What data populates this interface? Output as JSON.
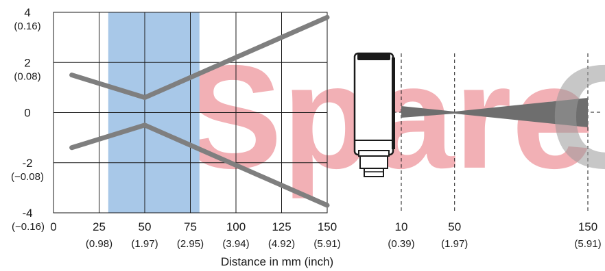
{
  "watermark": {
    "text": "SpareC",
    "color_main": "#e8707a",
    "color_tail": "#9a9a9a"
  },
  "chart_data": [
    {
      "type": "line",
      "title": "",
      "xlabel": "Distance in mm (inch)",
      "ylabel": "",
      "xlim": [
        0,
        150
      ],
      "ylim": [
        -4,
        4
      ],
      "grid": true,
      "x_ticks": [
        {
          "value": 0,
          "label": "0",
          "sublabel": ""
        },
        {
          "value": 25,
          "label": "25",
          "sublabel": "(0.98)"
        },
        {
          "value": 50,
          "label": "50",
          "sublabel": "(1.97)"
        },
        {
          "value": 75,
          "label": "75",
          "sublabel": "(2.95)"
        },
        {
          "value": 100,
          "label": "100",
          "sublabel": "(3.94)"
        },
        {
          "value": 125,
          "label": "125",
          "sublabel": "(4.92)"
        },
        {
          "value": 150,
          "label": "150",
          "sublabel": "(5.91)"
        }
      ],
      "y_ticks": [
        {
          "value": 4,
          "label": "4",
          "sublabel": "(0.16)"
        },
        {
          "value": 2,
          "label": "2",
          "sublabel": "(0.08)"
        },
        {
          "value": 0,
          "label": "0",
          "sublabel": ""
        },
        {
          "value": -2,
          "label": "-2",
          "sublabel": "(−0.08)"
        },
        {
          "value": -4,
          "label": "-4",
          "sublabel": "(−0.16)"
        }
      ],
      "highlight_band": {
        "x_start": 30,
        "x_end": 80,
        "color": "#a8c8e8"
      },
      "series": [
        {
          "color": "#7f7f7f",
          "x": [
            10,
            50,
            150
          ],
          "values": [
            1.5,
            0.6,
            3.8
          ]
        },
        {
          "color": "#7f7f7f",
          "x": [
            10,
            50,
            150
          ],
          "values": [
            -1.4,
            -0.5,
            -3.7
          ]
        }
      ]
    },
    {
      "type": "diagram",
      "title": "",
      "x_ticks": [
        {
          "value": 10,
          "label": "10",
          "sublabel": "(0.39)"
        },
        {
          "value": 50,
          "label": "50",
          "sublabel": "(1.97)"
        },
        {
          "value": 150,
          "label": "150",
          "sublabel": "(5.91)"
        }
      ],
      "beam": {
        "waist_at": 50,
        "color": "#6e6e6e"
      },
      "sensor_color": "#1a1a1a"
    }
  ]
}
